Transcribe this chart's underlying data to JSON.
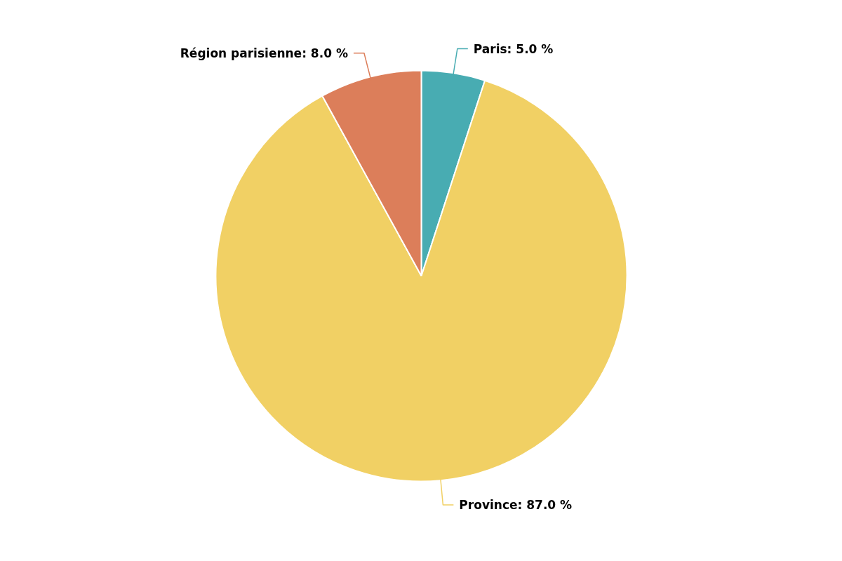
{
  "chart_data": {
    "type": "pie",
    "categories": [
      "Paris",
      "Province",
      "Région parisienne"
    ],
    "values": [
      5.0,
      87.0,
      8.0
    ],
    "value_labels": [
      "5.0 %",
      "87.0 %",
      "8.0 %"
    ],
    "colors": [
      "#48acb2",
      "#f1d064",
      "#dc7e5a"
    ],
    "legend": false
  }
}
